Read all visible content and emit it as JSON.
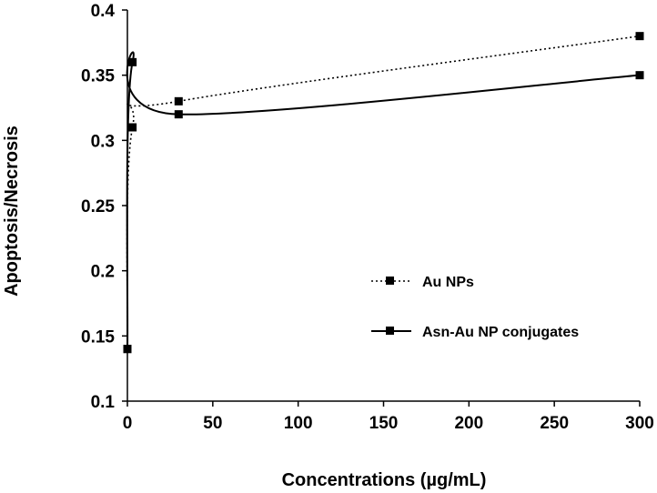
{
  "chart_data": {
    "type": "line",
    "title": "",
    "xlabel": "Concentrations (µg/mL)",
    "ylabel": "Apoptosis/Necrosis",
    "xlim": [
      0,
      300
    ],
    "ylim": [
      0.1,
      0.4
    ],
    "x_ticks": [
      0,
      50,
      100,
      150,
      200,
      250,
      300
    ],
    "x_tick_labels": [
      "0",
      "50",
      "100",
      "150",
      "200",
      "250",
      "300"
    ],
    "y_ticks": [
      0.1,
      0.15,
      0.2,
      0.25,
      0.3,
      0.35,
      0.4
    ],
    "y_tick_labels": [
      "0.1",
      "0.15",
      "0.2",
      "0.25",
      "0.3",
      "0.35",
      "0.4"
    ],
    "grid": false,
    "legend_position": "center-right",
    "series": [
      {
        "name": "Au NPs",
        "line_style": "dotted",
        "marker": "square",
        "color": "#000000",
        "points": [
          {
            "x": 0,
            "y": 0.14
          },
          {
            "x": 3,
            "y": 0.31
          },
          {
            "x": 30,
            "y": 0.33
          },
          {
            "x": 300,
            "y": 0.38
          }
        ]
      },
      {
        "name": "Asn-Au NP conjugates",
        "line_style": "solid",
        "marker": "square",
        "color": "#000000",
        "points": [
          {
            "x": 0,
            "y": 0.14
          },
          {
            "x": 3,
            "y": 0.36
          },
          {
            "x": 30,
            "y": 0.32
          },
          {
            "x": 300,
            "y": 0.35
          }
        ]
      }
    ]
  }
}
